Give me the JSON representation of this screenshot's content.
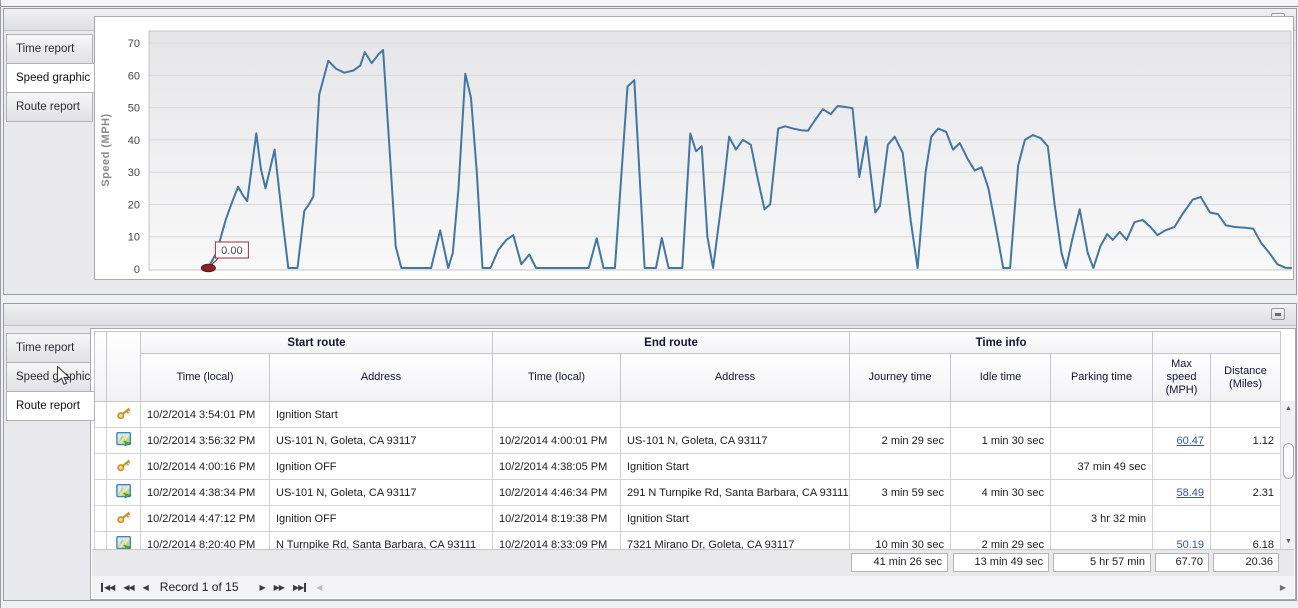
{
  "top_panel": {
    "tabs": [
      {
        "label": "Time report",
        "active": false
      },
      {
        "label": "Speed graphic",
        "active": true
      },
      {
        "label": "Route report",
        "active": false
      }
    ]
  },
  "chart_data": {
    "type": "line",
    "title": "",
    "xlabel": "",
    "ylabel": "Speed (MPH)",
    "y_ticks": [
      0,
      10,
      20,
      30,
      40,
      50,
      60,
      70
    ],
    "ylim": [
      0,
      74
    ],
    "grid": true,
    "legend": "none",
    "x_unit": "fraction of visible time axis",
    "series": [
      {
        "name": "Speed",
        "color": "#4276a4",
        "points": [
          [
            0.052,
            0.5
          ],
          [
            0.059,
            5
          ],
          [
            0.067,
            15
          ],
          [
            0.072,
            20
          ],
          [
            0.078,
            25.5
          ],
          [
            0.082,
            23
          ],
          [
            0.086,
            21
          ],
          [
            0.094,
            42
          ],
          [
            0.098,
            31
          ],
          [
            0.102,
            25
          ],
          [
            0.11,
            37
          ],
          [
            0.117,
            15
          ],
          [
            0.122,
            0.3
          ],
          [
            0.13,
            0.3
          ],
          [
            0.136,
            18
          ],
          [
            0.14,
            20
          ],
          [
            0.144,
            22.5
          ],
          [
            0.149,
            54
          ],
          [
            0.157,
            64.5
          ],
          [
            0.164,
            62
          ],
          [
            0.171,
            60.8
          ],
          [
            0.179,
            61.5
          ],
          [
            0.185,
            63
          ],
          [
            0.189,
            67.2
          ],
          [
            0.195,
            63.8
          ],
          [
            0.201,
            66.5
          ],
          [
            0.205,
            67.8
          ],
          [
            0.211,
            35
          ],
          [
            0.216,
            7
          ],
          [
            0.221,
            0.3
          ],
          [
            0.247,
            0.3
          ],
          [
            0.255,
            12
          ],
          [
            0.262,
            0.3
          ],
          [
            0.266,
            5
          ],
          [
            0.271,
            25
          ],
          [
            0.277,
            60.5
          ],
          [
            0.282,
            53
          ],
          [
            0.287,
            30
          ],
          [
            0.292,
            0.3
          ],
          [
            0.299,
            0.3
          ],
          [
            0.306,
            6
          ],
          [
            0.313,
            9
          ],
          [
            0.319,
            10.5
          ],
          [
            0.326,
            1.5
          ],
          [
            0.333,
            4.5
          ],
          [
            0.339,
            0.3
          ],
          [
            0.385,
            0.3
          ],
          [
            0.392,
            9.5
          ],
          [
            0.398,
            0.3
          ],
          [
            0.408,
            0.3
          ],
          [
            0.419,
            56.5
          ],
          [
            0.425,
            58.5
          ],
          [
            0.431,
            20
          ],
          [
            0.434,
            0.3
          ],
          [
            0.444,
            0.3
          ],
          [
            0.449,
            9.6
          ],
          [
            0.455,
            0.3
          ],
          [
            0.467,
            0.3
          ],
          [
            0.474,
            42
          ],
          [
            0.479,
            36.5
          ],
          [
            0.484,
            38
          ],
          [
            0.489,
            10
          ],
          [
            0.494,
            0.3
          ],
          [
            0.503,
            25
          ],
          [
            0.508,
            41
          ],
          [
            0.514,
            37
          ],
          [
            0.52,
            40
          ],
          [
            0.527,
            38.5
          ],
          [
            0.533,
            28
          ],
          [
            0.539,
            18.5
          ],
          [
            0.544,
            20
          ],
          [
            0.551,
            43.5
          ],
          [
            0.557,
            44.2
          ],
          [
            0.564,
            43.5
          ],
          [
            0.571,
            43
          ],
          [
            0.577,
            42.8
          ],
          [
            0.583,
            46
          ],
          [
            0.59,
            49.5
          ],
          [
            0.597,
            48
          ],
          [
            0.603,
            50.5
          ],
          [
            0.61,
            50.2
          ],
          [
            0.616,
            49.8
          ],
          [
            0.622,
            28.5
          ],
          [
            0.628,
            41
          ],
          [
            0.636,
            17.5
          ],
          [
            0.64,
            19.5
          ],
          [
            0.647,
            38.5
          ],
          [
            0.653,
            41
          ],
          [
            0.66,
            36
          ],
          [
            0.667,
            15
          ],
          [
            0.673,
            0.3
          ],
          [
            0.68,
            30
          ],
          [
            0.685,
            41
          ],
          [
            0.691,
            43.5
          ],
          [
            0.698,
            42.5
          ],
          [
            0.704,
            37
          ],
          [
            0.71,
            39
          ],
          [
            0.717,
            34
          ],
          [
            0.723,
            30.5
          ],
          [
            0.729,
            31.5
          ],
          [
            0.735,
            25
          ],
          [
            0.742,
            12
          ],
          [
            0.748,
            0.3
          ],
          [
            0.754,
            0.3
          ],
          [
            0.761,
            32
          ],
          [
            0.767,
            40
          ],
          [
            0.774,
            41.5
          ],
          [
            0.781,
            40.5
          ],
          [
            0.787,
            38
          ],
          [
            0.793,
            20
          ],
          [
            0.799,
            5
          ],
          [
            0.803,
            0.3
          ],
          [
            0.809,
            10
          ],
          [
            0.815,
            18.5
          ],
          [
            0.822,
            5
          ],
          [
            0.827,
            0.3
          ],
          [
            0.833,
            7
          ],
          [
            0.839,
            10.8
          ],
          [
            0.844,
            9
          ],
          [
            0.85,
            11.5
          ],
          [
            0.856,
            9
          ],
          [
            0.863,
            14.5
          ],
          [
            0.87,
            15.2
          ],
          [
            0.877,
            13
          ],
          [
            0.883,
            10.5
          ],
          [
            0.89,
            12
          ],
          [
            0.898,
            13
          ],
          [
            0.905,
            17
          ],
          [
            0.914,
            21.5
          ],
          [
            0.921,
            22.3
          ],
          [
            0.929,
            17.5
          ],
          [
            0.936,
            17
          ],
          [
            0.943,
            13.5
          ],
          [
            0.951,
            13
          ],
          [
            0.96,
            12.8
          ],
          [
            0.967,
            12.5
          ],
          [
            0.974,
            8
          ],
          [
            0.981,
            5
          ],
          [
            0.988,
            1.5
          ],
          [
            0.995,
            0.4
          ],
          [
            1.0,
            0.3
          ]
        ]
      }
    ],
    "annotations": [
      {
        "label": "0.00",
        "x": 0.052,
        "y": 0,
        "marker_color": "#8c2222"
      }
    ]
  },
  "bottom_panel": {
    "tabs": [
      {
        "label": "Time report",
        "active": false
      },
      {
        "label": "Speed graphic",
        "active": false,
        "hovered": true
      },
      {
        "label": "Route report",
        "active": true
      }
    ],
    "table": {
      "groups": [
        "Start route",
        "End route",
        "Time info"
      ],
      "columns": [
        "Time (local)",
        "Address",
        "Time (local)",
        "Address",
        "Journey time",
        "Idle time",
        "Parking time",
        "Max speed (MPH)",
        "Distance (Miles)"
      ],
      "rows": [
        {
          "icon": "key",
          "start_time": "10/2/2014 3:54:01 PM",
          "start_address": "Ignition Start",
          "end_time": "",
          "end_address": "",
          "journey": "",
          "idle": "",
          "parking": "",
          "max_speed": "",
          "distance": ""
        },
        {
          "icon": "route",
          "start_time": "10/2/2014 3:56:32 PM",
          "start_address": "US-101 N, Goleta, CA 93117",
          "end_time": "10/2/2014 4:00:01 PM",
          "end_address": "US-101 N, Goleta, CA 93117",
          "journey": "2 min 29 sec",
          "idle": "1 min 30 sec",
          "parking": "",
          "max_speed": "60.47",
          "distance": "1.12"
        },
        {
          "icon": "key",
          "start_time": "10/2/2014 4:00:16 PM",
          "start_address": "Ignition OFF",
          "end_time": "10/2/2014 4:38:05 PM",
          "end_address": "Ignition Start",
          "journey": "",
          "idle": "",
          "parking": "37 min 49 sec",
          "max_speed": "",
          "distance": ""
        },
        {
          "icon": "route",
          "start_time": "10/2/2014 4:38:34 PM",
          "start_address": "US-101 N, Goleta, CA 93117",
          "end_time": "10/2/2014 4:46:34 PM",
          "end_address": "291 N Turnpike Rd, Santa Barbara, CA 93111",
          "journey": "3 min 59 sec",
          "idle": "4 min 30 sec",
          "parking": "",
          "max_speed": "58.49",
          "distance": "2.31"
        },
        {
          "icon": "key",
          "start_time": "10/2/2014 4:47:12 PM",
          "start_address": "Ignition OFF",
          "end_time": "10/2/2014 8:19:38 PM",
          "end_address": "Ignition Start",
          "journey": "",
          "idle": "",
          "parking": "3 hr 32 min",
          "max_speed": "",
          "distance": ""
        },
        {
          "icon": "route",
          "start_time": "10/2/2014 8:20:40 PM",
          "start_address": "N Turnpike Rd, Santa Barbara, CA 93111",
          "end_time": "10/2/2014 8:33:09 PM",
          "end_address": "7321 Mirano Dr, Goleta, CA 93117",
          "journey": "10 min 30 sec",
          "idle": "2 min 29 sec",
          "parking": "",
          "max_speed": "50.19",
          "distance": "6.18"
        }
      ],
      "summary": {
        "journey": "41 min 26 sec",
        "idle": "13 min 49 sec",
        "parking": "5 hr 57 min",
        "max_speed": "67.70",
        "distance": "20.36"
      },
      "navigator": {
        "record_text": "Record 1 of 15"
      }
    }
  },
  "icons": {
    "nav_first": "◀◀",
    "nav_prev_page": "◀◀",
    "nav_prev": "◀",
    "nav_next": "▶",
    "nav_next_page": "▶▶",
    "nav_last": "▶▶",
    "scroll_up": "▲",
    "scroll_down": "▼",
    "scroll_left": "◀",
    "scroll_right": "▶"
  }
}
